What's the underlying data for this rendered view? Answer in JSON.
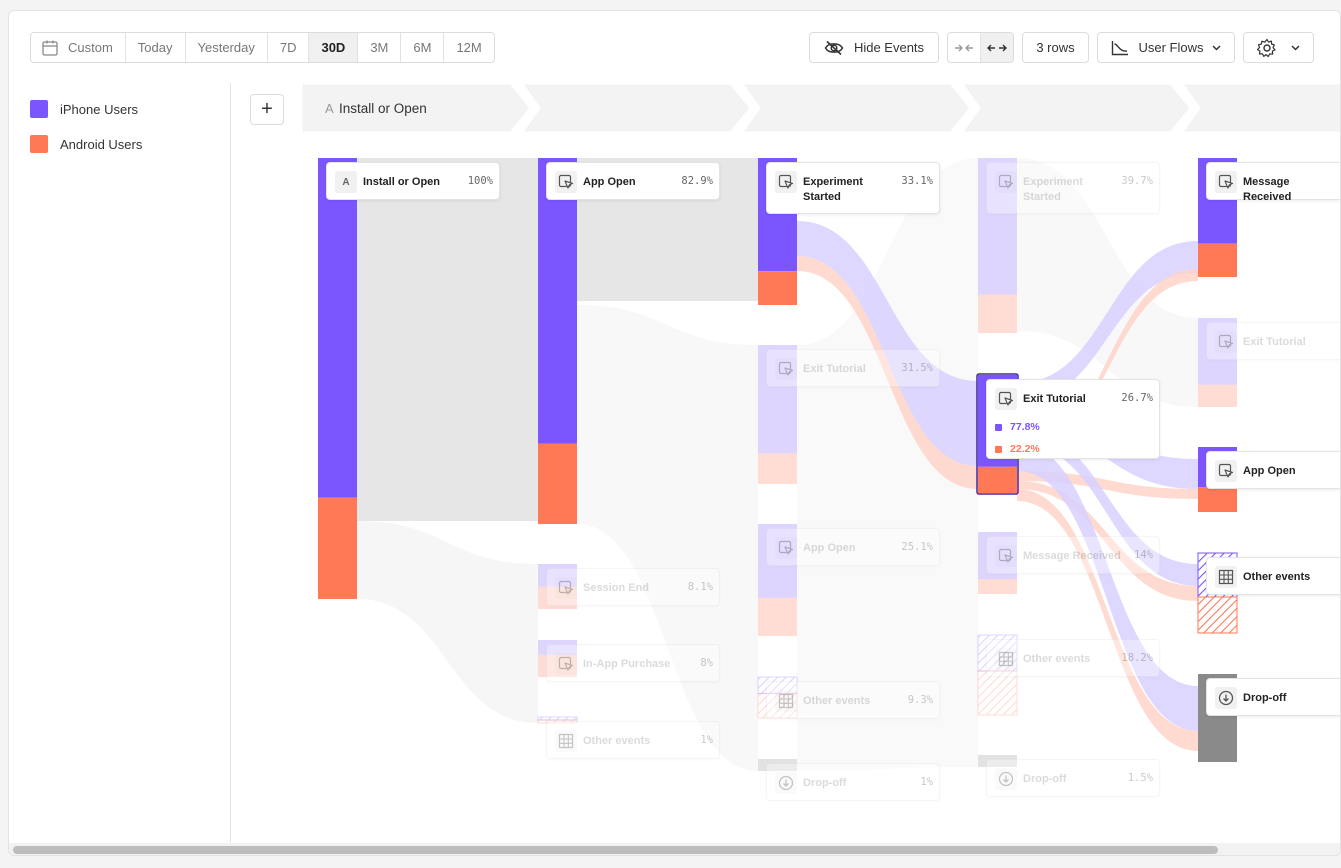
{
  "toolbar": {
    "date_ranges": [
      {
        "label": "Custom",
        "active": false
      },
      {
        "label": "Today",
        "active": false
      },
      {
        "label": "Yesterday",
        "active": false
      },
      {
        "label": "7D",
        "active": false
      },
      {
        "label": "30D",
        "active": true
      },
      {
        "label": "3M",
        "active": false
      },
      {
        "label": "6M",
        "active": false
      },
      {
        "label": "12M",
        "active": false
      }
    ],
    "hide_events_label": "Hide Events",
    "rows_label": "3 rows",
    "report_type_label": "User Flows"
  },
  "legend": [
    {
      "label": "iPhone Users",
      "color": "#7b56ff"
    },
    {
      "label": "Android Users",
      "color": "#ff7957"
    }
  ],
  "steps": [
    {
      "letter": "A",
      "label": "Install or Open"
    },
    {
      "label": ""
    },
    {
      "label": ""
    },
    {
      "label": ""
    },
    {
      "label": ""
    }
  ],
  "colors": {
    "iphone": "#7b56ff",
    "android": "#ff7957",
    "dropoff": "#8a8a8a"
  },
  "nodes": [
    {
      "col": 0,
      "label": "Install or Open",
      "pct": "100%",
      "letter": "A",
      "highlight": true,
      "ios": 0.77,
      "and": 0.23
    },
    {
      "col": 1,
      "label": "App Open",
      "pct": "82.9%",
      "highlight": true,
      "ios": 0.78,
      "and": 0.22
    },
    {
      "col": 1,
      "label": "Session End",
      "pct": "8.1%",
      "highlight": false,
      "ios": 0.5,
      "and": 0.5
    },
    {
      "col": 1,
      "label": "In-App Purchase",
      "pct": "8%",
      "highlight": false,
      "ios": 0.4,
      "and": 0.6
    },
    {
      "col": 1,
      "label": "Other events",
      "pct": "1%",
      "highlight": false,
      "ios": 0.5,
      "and": 0.5,
      "other": true
    },
    {
      "col": 2,
      "label": "Experiment Started",
      "pct": "33.1%",
      "highlight": true,
      "ios": 0.77,
      "and": 0.23
    },
    {
      "col": 2,
      "label": "Exit Tutorial",
      "pct": "31.5%",
      "highlight": false,
      "ios": 0.78,
      "and": 0.22
    },
    {
      "col": 2,
      "label": "App Open",
      "pct": "25.1%",
      "highlight": false,
      "ios": 0.66,
      "and": 0.34
    },
    {
      "col": 2,
      "label": "Other events",
      "pct": "9.3%",
      "highlight": false,
      "ios": 0.4,
      "and": 0.6,
      "other": true
    },
    {
      "col": 2,
      "label": "Drop-off",
      "pct": "1%",
      "highlight": false,
      "dropoff": true
    },
    {
      "col": 3,
      "label": "Experiment Started",
      "pct": "39.7%",
      "highlight": false,
      "ios": 0.78,
      "and": 0.22
    },
    {
      "col": 3,
      "label": "Exit Tutorial",
      "pct": "26.7%",
      "highlight": true,
      "ios": 0.778,
      "and": 0.222,
      "iphone_pct": "77.8%",
      "android_pct": "22.2%"
    },
    {
      "col": 3,
      "label": "Message Received",
      "pct": "14%",
      "highlight": false,
      "ios": 0.76,
      "and": 0.24
    },
    {
      "col": 3,
      "label": "Other events",
      "pct": "18.2%",
      "highlight": false,
      "ios": 0.45,
      "and": 0.55,
      "other": true
    },
    {
      "col": 3,
      "label": "Drop-off",
      "pct": "1.5%",
      "highlight": false,
      "dropoff": true
    },
    {
      "col": 4,
      "label": "Message Received",
      "pct": "",
      "highlight": true,
      "ios": 0.72,
      "and": 0.28
    },
    {
      "col": 4,
      "label": "Exit Tutorial",
      "pct": "",
      "highlight": false,
      "ios": 0.75,
      "and": 0.25
    },
    {
      "col": 4,
      "label": "App Open",
      "pct": "",
      "highlight": true,
      "ios": 0.62,
      "and": 0.38
    },
    {
      "col": 4,
      "label": "Other events",
      "pct": "",
      "highlight": true,
      "ios": 0.55,
      "and": 0.45,
      "other": true
    },
    {
      "col": 4,
      "label": "Drop-off",
      "pct": "",
      "highlight": true,
      "dropoff": true
    }
  ]
}
